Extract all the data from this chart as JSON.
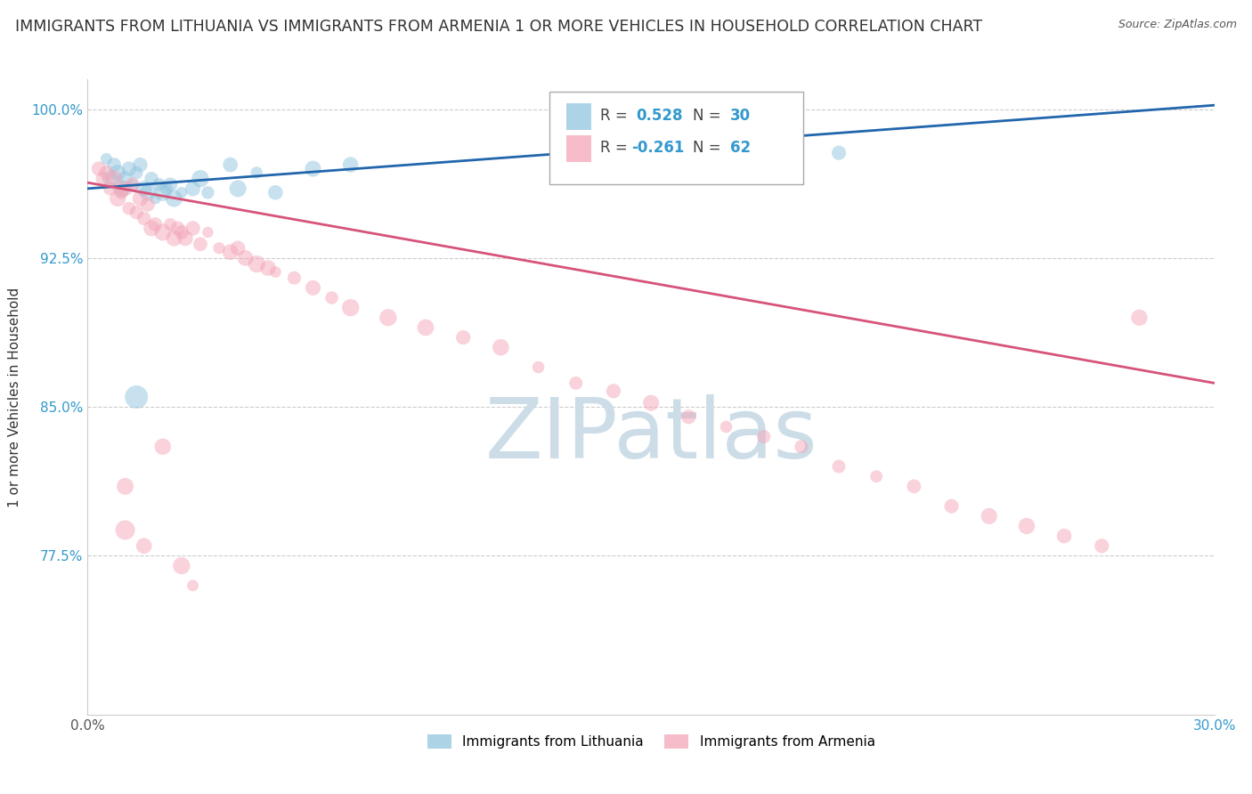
{
  "title": "IMMIGRANTS FROM LITHUANIA VS IMMIGRANTS FROM ARMENIA 1 OR MORE VEHICLES IN HOUSEHOLD CORRELATION CHART",
  "source": "Source: ZipAtlas.com",
  "ylabel": "1 or more Vehicles in Household",
  "xlim": [
    0.0,
    0.3
  ],
  "ylim": [
    0.695,
    1.015
  ],
  "yticks": [
    0.775,
    0.85,
    0.925,
    1.0
  ],
  "ytick_labels": [
    "77.5%",
    "85.0%",
    "92.5%",
    "100.0%"
  ],
  "xticks": [
    0.0,
    0.05,
    0.1,
    0.15,
    0.2,
    0.25,
    0.3
  ],
  "blue_color": "#92c5de",
  "pink_color": "#f4a6b8",
  "blue_line_color": "#2166ac",
  "pink_line_color": "#d6537a",
  "watermark": "ZIPatlas",
  "watermark_color": "#ccdde8",
  "title_fontsize": 12.5,
  "r_lith": 0.528,
  "n_lith": 30,
  "r_arm": -0.261,
  "n_arm": 62,
  "legend_label_1": "Immigrants from Lithuania",
  "legend_label_2": "Immigrants from Armenia",
  "lith_x": [
    0.005,
    0.006,
    0.007,
    0.008,
    0.009,
    0.01,
    0.011,
    0.012,
    0.013,
    0.014,
    0.015,
    0.016,
    0.017,
    0.018,
    0.019,
    0.02,
    0.021,
    0.022,
    0.023,
    0.025,
    0.028,
    0.03,
    0.032,
    0.038,
    0.04,
    0.045,
    0.05,
    0.06,
    0.07,
    0.2
  ],
  "lith_y": [
    0.975,
    0.965,
    0.972,
    0.968,
    0.96,
    0.965,
    0.97,
    0.962,
    0.968,
    0.972,
    0.96,
    0.958,
    0.965,
    0.955,
    0.962,
    0.958,
    0.96,
    0.962,
    0.955,
    0.958,
    0.96,
    0.965,
    0.958,
    0.972,
    0.96,
    0.968,
    0.958,
    0.97,
    0.972,
    0.978
  ],
  "arm_x": [
    0.003,
    0.004,
    0.005,
    0.006,
    0.007,
    0.008,
    0.009,
    0.01,
    0.011,
    0.012,
    0.013,
    0.014,
    0.015,
    0.016,
    0.017,
    0.018,
    0.02,
    0.022,
    0.023,
    0.024,
    0.025,
    0.026,
    0.028,
    0.03,
    0.032,
    0.035,
    0.038,
    0.04,
    0.042,
    0.045,
    0.048,
    0.05,
    0.055,
    0.06,
    0.065,
    0.07,
    0.08,
    0.09,
    0.1,
    0.11,
    0.12,
    0.13,
    0.14,
    0.15,
    0.16,
    0.17,
    0.18,
    0.19,
    0.2,
    0.21,
    0.22,
    0.23,
    0.24,
    0.25,
    0.26,
    0.27,
    0.28,
    0.01,
    0.015,
    0.02,
    0.025,
    0.028
  ],
  "arm_y": [
    0.97,
    0.965,
    0.968,
    0.96,
    0.965,
    0.955,
    0.958,
    0.96,
    0.95,
    0.962,
    0.948,
    0.955,
    0.945,
    0.952,
    0.94,
    0.942,
    0.938,
    0.942,
    0.935,
    0.94,
    0.938,
    0.935,
    0.94,
    0.932,
    0.938,
    0.93,
    0.928,
    0.93,
    0.925,
    0.922,
    0.92,
    0.918,
    0.915,
    0.91,
    0.905,
    0.9,
    0.895,
    0.89,
    0.885,
    0.88,
    0.87,
    0.862,
    0.858,
    0.852,
    0.845,
    0.84,
    0.835,
    0.83,
    0.82,
    0.815,
    0.81,
    0.8,
    0.795,
    0.79,
    0.785,
    0.78,
    0.895,
    0.81,
    0.78,
    0.83,
    0.77,
    0.76
  ]
}
